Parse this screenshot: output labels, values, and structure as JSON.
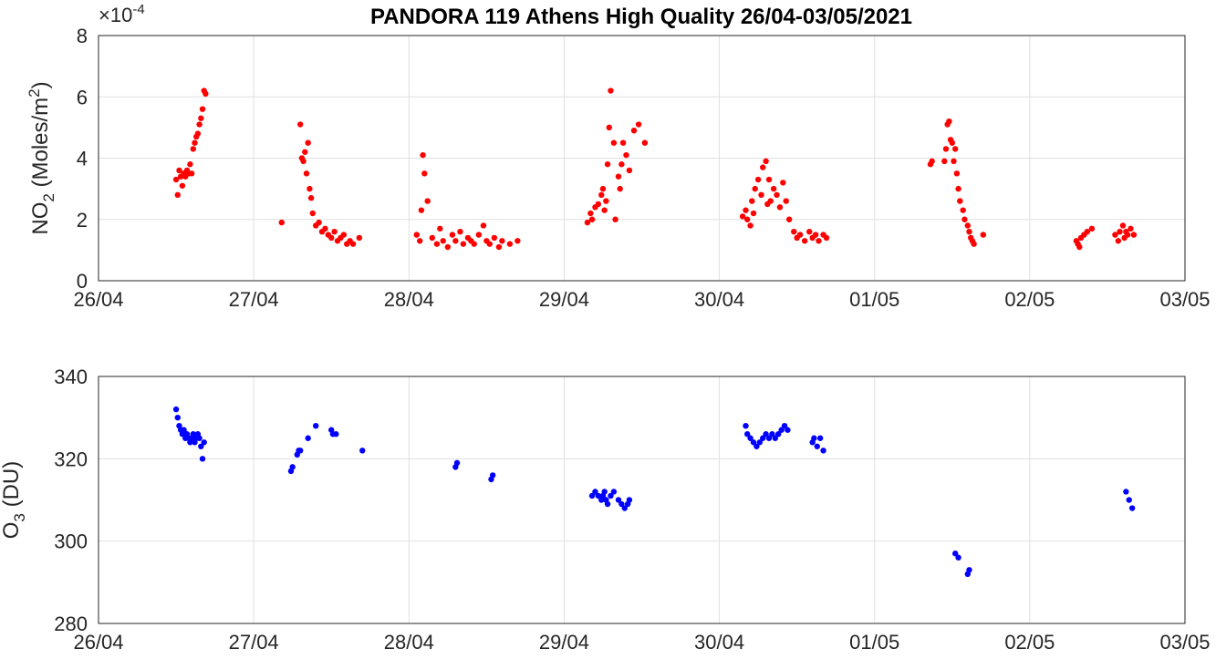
{
  "chart_data": [
    {
      "type": "scatter",
      "title": "PANDORA 119 Athens High Quality 26/04-03/05/2021",
      "ylabel": {
        "prefix": "NO",
        "sub": "2",
        "unit_prefix": " (Moles/m",
        "sup": "2",
        "unit_suffix": ")"
      },
      "exponent_label": {
        "base": "×10",
        "sup": "-4"
      },
      "x_tick_labels": [
        "26/04",
        "27/04",
        "28/04",
        "29/04",
        "30/04",
        "01/05",
        "02/05",
        "03/05"
      ],
      "x_range": [
        0,
        7
      ],
      "y_ticks": [
        0,
        2,
        4,
        6,
        8
      ],
      "y_tick_labels": [
        "0",
        "2",
        "4",
        "6",
        "8"
      ],
      "ylim": [
        0,
        8
      ],
      "grid": true,
      "marker_color": "#ff0000",
      "series": [
        {
          "x": [
            0.5,
            0.51,
            0.52,
            0.53,
            0.54,
            0.55,
            0.56,
            0.57,
            0.58,
            0.59,
            0.6,
            0.61,
            0.62,
            0.63,
            0.64,
            0.65,
            0.66,
            0.67,
            0.68,
            0.69,
            1.18,
            1.3,
            1.31,
            1.32,
            1.33,
            1.34,
            1.35,
            1.36,
            1.37,
            1.38,
            1.4,
            1.42,
            1.44,
            1.46,
            1.48,
            1.5,
            1.52,
            1.54,
            1.56,
            1.58,
            1.6,
            1.62,
            1.64,
            1.68,
            2.05,
            2.07,
            2.08,
            2.09,
            2.1,
            2.12,
            2.15,
            2.18,
            2.2,
            2.22,
            2.25,
            2.28,
            2.3,
            2.33,
            2.35,
            2.38,
            2.4,
            2.42,
            2.45,
            2.48,
            2.5,
            2.52,
            2.55,
            2.58,
            2.6,
            2.65,
            2.7,
            3.15,
            3.17,
            3.18,
            3.2,
            3.22,
            3.24,
            3.25,
            3.26,
            3.27,
            3.28,
            3.29,
            3.3,
            3.32,
            3.33,
            3.35,
            3.36,
            3.37,
            3.38,
            3.4,
            3.42,
            3.45,
            3.48,
            3.52,
            4.15,
            4.17,
            4.18,
            4.2,
            4.21,
            4.22,
            4.23,
            4.25,
            4.27,
            4.28,
            4.3,
            4.31,
            4.32,
            4.33,
            4.35,
            4.37,
            4.39,
            4.41,
            4.43,
            4.45,
            4.48,
            4.5,
            4.52,
            4.55,
            4.58,
            4.6,
            4.62,
            4.64,
            4.67,
            4.69,
            5.36,
            5.37,
            5.45,
            5.46,
            5.47,
            5.48,
            5.49,
            5.5,
            5.51,
            5.52,
            5.53,
            5.54,
            5.55,
            5.57,
            5.58,
            5.6,
            5.61,
            5.62,
            5.63,
            5.64,
            5.7,
            6.3,
            6.31,
            6.32,
            6.33,
            6.35,
            6.37,
            6.4,
            6.55,
            6.57,
            6.58,
            6.6,
            6.61,
            6.62,
            6.63,
            6.65,
            6.67
          ],
          "y": [
            3.3,
            2.8,
            3.6,
            3.4,
            3.1,
            3.5,
            3.4,
            3.6,
            3.5,
            3.8,
            3.5,
            4.3,
            4.5,
            4.7,
            4.8,
            5.1,
            5.3,
            5.6,
            6.2,
            6.1,
            1.9,
            5.1,
            4.0,
            3.9,
            4.2,
            3.5,
            4.5,
            3.0,
            2.7,
            2.2,
            1.8,
            1.9,
            1.6,
            1.7,
            1.5,
            1.4,
            1.6,
            1.3,
            1.4,
            1.5,
            1.2,
            1.3,
            1.2,
            1.4,
            1.5,
            1.3,
            2.3,
            4.1,
            3.5,
            2.6,
            1.4,
            1.2,
            1.7,
            1.3,
            1.1,
            1.5,
            1.3,
            1.6,
            1.2,
            1.4,
            1.3,
            1.2,
            1.5,
            1.8,
            1.3,
            1.2,
            1.4,
            1.1,
            1.3,
            1.2,
            1.3,
            1.9,
            2.2,
            2.0,
            2.4,
            2.5,
            2.8,
            3.0,
            2.3,
            2.6,
            3.8,
            5.0,
            6.2,
            4.5,
            2.0,
            3.4,
            3.0,
            3.8,
            4.5,
            4.1,
            3.6,
            4.9,
            5.1,
            4.5,
            2.1,
            2.3,
            2.0,
            1.8,
            2.6,
            2.2,
            3.0,
            3.3,
            2.8,
            3.7,
            3.9,
            2.5,
            3.3,
            2.6,
            3.0,
            2.8,
            2.4,
            3.2,
            2.6,
            2.0,
            1.6,
            1.4,
            1.5,
            1.3,
            1.6,
            1.4,
            1.5,
            1.3,
            1.5,
            1.4,
            3.8,
            3.9,
            3.9,
            4.3,
            5.1,
            5.2,
            4.6,
            4.5,
            3.9,
            4.3,
            3.5,
            3.0,
            2.6,
            2.3,
            2.0,
            1.8,
            1.6,
            1.4,
            1.3,
            1.2,
            1.5,
            1.3,
            1.2,
            1.1,
            1.4,
            1.5,
            1.6,
            1.7,
            1.5,
            1.3,
            1.6,
            1.8,
            1.4,
            1.6,
            1.5,
            1.7,
            1.5
          ]
        }
      ]
    },
    {
      "type": "scatter",
      "ylabel": {
        "prefix": "O",
        "sub": "3",
        "unit_prefix": " (DU)",
        "sup": "",
        "unit_suffix": ""
      },
      "x_tick_labels": [
        "26/04",
        "27/04",
        "28/04",
        "29/04",
        "30/04",
        "01/05",
        "02/05",
        "03/05"
      ],
      "x_range": [
        0,
        7
      ],
      "y_ticks": [
        280,
        300,
        320,
        340
      ],
      "y_tick_labels": [
        "280",
        "300",
        "320",
        "340"
      ],
      "ylim": [
        280,
        340
      ],
      "grid": true,
      "marker_color": "#0000ff",
      "series": [
        {
          "x": [
            0.5,
            0.51,
            0.52,
            0.53,
            0.54,
            0.55,
            0.56,
            0.57,
            0.58,
            0.59,
            0.6,
            0.61,
            0.62,
            0.63,
            0.64,
            0.65,
            0.66,
            0.67,
            0.68,
            1.24,
            1.25,
            1.28,
            1.29,
            1.3,
            1.35,
            1.4,
            1.5,
            1.51,
            1.53,
            1.7,
            2.3,
            2.31,
            2.53,
            2.54,
            3.18,
            3.2,
            3.22,
            3.24,
            3.25,
            3.26,
            3.27,
            3.28,
            3.3,
            3.32,
            3.35,
            3.37,
            3.39,
            3.41,
            3.42,
            4.17,
            4.18,
            4.2,
            4.22,
            4.24,
            4.26,
            4.28,
            4.3,
            4.32,
            4.34,
            4.36,
            4.38,
            4.4,
            4.42,
            4.44,
            4.6,
            4.61,
            4.63,
            4.65,
            4.67,
            5.52,
            5.54,
            5.6,
            5.61,
            6.62,
            6.64,
            6.66
          ],
          "y": [
            332,
            330,
            328,
            327,
            326,
            327,
            325,
            326,
            325,
            324,
            325,
            326,
            324,
            325,
            326,
            325,
            323,
            320,
            324,
            317,
            318,
            321,
            322,
            322,
            325,
            328,
            327,
            326,
            326,
            322,
            318,
            319,
            315,
            316,
            311,
            312,
            311,
            310,
            311,
            312,
            310,
            309,
            311,
            312,
            310,
            309,
            308,
            309,
            310,
            328,
            326,
            325,
            324,
            323,
            324,
            325,
            326,
            325,
            326,
            325,
            326,
            327,
            328,
            327,
            324,
            325,
            323,
            325,
            322,
            297,
            296,
            292,
            293,
            312,
            310,
            308
          ]
        }
      ]
    }
  ]
}
